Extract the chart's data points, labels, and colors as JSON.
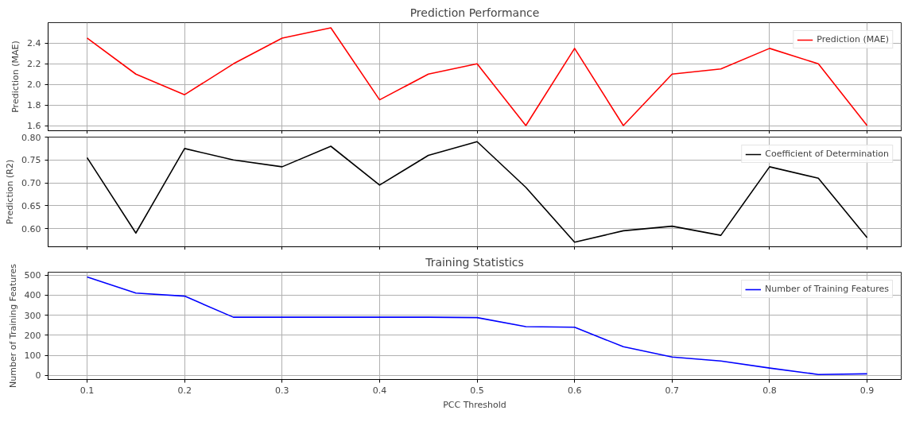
{
  "chart_data": [
    {
      "type": "line",
      "title": "Prediction Performance",
      "ylabel": "Prediction (MAE)",
      "x": [
        0.1,
        0.15,
        0.2,
        0.25,
        0.3,
        0.35,
        0.4,
        0.45,
        0.5,
        0.55,
        0.6,
        0.65,
        0.7,
        0.75,
        0.8,
        0.85,
        0.9
      ],
      "series": [
        {
          "name": "Prediction (MAE)",
          "color": "#ff0000",
          "values": [
            2.45,
            2.1,
            1.9,
            2.2,
            2.45,
            2.55,
            1.85,
            2.1,
            2.2,
            1.6,
            2.35,
            1.6,
            2.1,
            2.15,
            2.35,
            2.2,
            1.6
          ]
        }
      ],
      "xlim": [
        0.06,
        0.935
      ],
      "xticks": [
        0.1,
        0.2,
        0.3,
        0.4,
        0.5,
        0.6,
        0.7,
        0.8,
        0.9
      ],
      "ylim": [
        1.55,
        2.6
      ],
      "yticks": [
        1.6,
        1.8,
        {
          "value": 2.0,
          "label": "2.0"
        },
        2.2,
        2.4
      ],
      "grid": true,
      "legend": "top right",
      "tick_labels": "y"
    },
    {
      "type": "line",
      "ylabel": "Prediction (R2)",
      "x": [
        0.1,
        0.15,
        0.2,
        0.25,
        0.3,
        0.35,
        0.4,
        0.45,
        0.5,
        0.55,
        0.6,
        0.65,
        0.7,
        0.75,
        0.8,
        0.85,
        0.9
      ],
      "series": [
        {
          "name": "Coefficient of Determination",
          "color": "#000000",
          "values": [
            0.755,
            0.59,
            0.775,
            0.75,
            0.735,
            0.78,
            0.695,
            0.76,
            0.79,
            0.69,
            0.57,
            0.595,
            0.605,
            0.585,
            0.735,
            0.71,
            0.58
          ]
        }
      ],
      "xlim": [
        0.06,
        0.935
      ],
      "xticks": [
        0.1,
        0.2,
        0.3,
        0.4,
        0.5,
        0.6,
        0.7,
        0.8,
        0.9
      ],
      "ylim": [
        0.56,
        0.8
      ],
      "yticks": [
        {
          "value": 0.6,
          "label": "0.60"
        },
        {
          "value": 0.65,
          "label": "0.65"
        },
        {
          "value": 0.7,
          "label": "0.70"
        },
        {
          "value": 0.75,
          "label": "0.75"
        },
        {
          "value": 0.8,
          "label": "0.80"
        }
      ],
      "grid": true,
      "legend": "top right",
      "tick_labels": "y"
    },
    {
      "type": "line",
      "title": "Training Statistics",
      "xlabel": "PCC Threshold",
      "ylabel": "Number of Training Features",
      "x": [
        0.1,
        0.15,
        0.2,
        0.25,
        0.3,
        0.35,
        0.4,
        0.45,
        0.5,
        0.55,
        0.6,
        0.65,
        0.7,
        0.75,
        0.8,
        0.85,
        0.9
      ],
      "series": [
        {
          "name": "Number of Training Features",
          "color": "#0000ff",
          "values": [
            490,
            410,
            395,
            290,
            290,
            290,
            290,
            290,
            288,
            243,
            240,
            143,
            92,
            72,
            37,
            5,
            8
          ]
        }
      ],
      "xlim": [
        0.06,
        0.935
      ],
      "xticks": [
        0.1,
        0.2,
        0.3,
        0.4,
        0.5,
        0.6,
        0.7,
        0.8,
        0.9
      ],
      "ylim": [
        -20,
        514
      ],
      "yticks": [
        0,
        100,
        200,
        300,
        400,
        500
      ],
      "grid": true,
      "legend": "top right"
    }
  ]
}
